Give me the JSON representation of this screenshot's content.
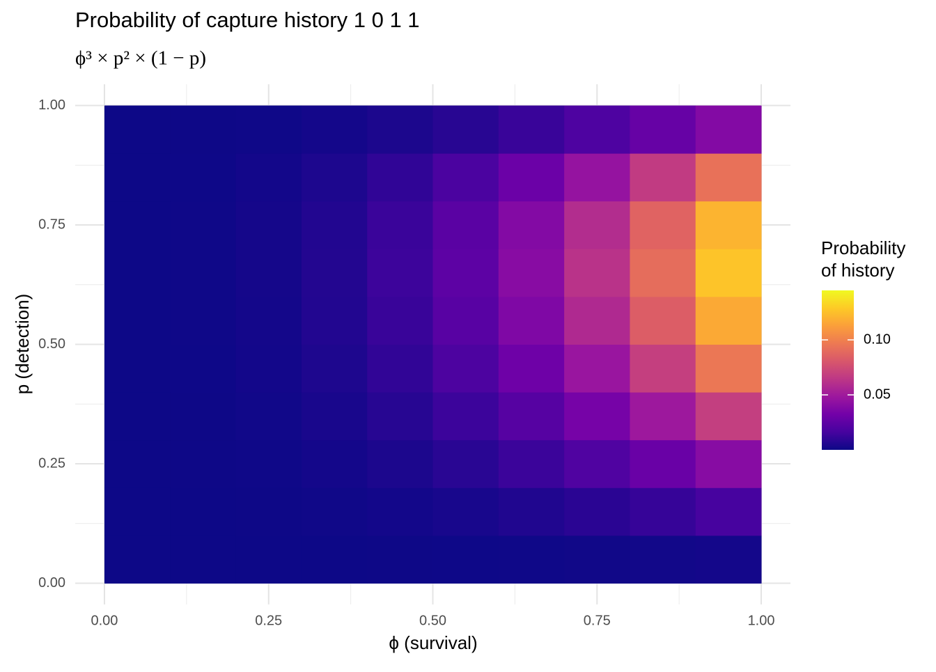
{
  "chart_data": {
    "type": "heatmap",
    "title": "Probability of capture history 1 0 1 1",
    "subtitle": "ϕ³ × p² × (1 − p)",
    "x_label": "ϕ (survival)",
    "y_label": "p (detection)",
    "legend_title": [
      "Probability",
      "of history"
    ],
    "x": [
      0.05,
      0.15,
      0.25,
      0.35,
      0.45,
      0.55,
      0.65,
      0.75,
      0.85,
      0.95
    ],
    "y": [
      0.05,
      0.15,
      0.25,
      0.35,
      0.45,
      0.55,
      0.65,
      0.75,
      0.85,
      0.95
    ],
    "values": [
      [
        0,
        0,
        0,
        0.0001,
        0.0002,
        0.0004,
        0.0007,
        0.001,
        0.0015,
        0.002
      ],
      [
        0,
        0.0001,
        0.0003,
        0.0008,
        0.0017,
        0.0032,
        0.0053,
        0.0081,
        0.0117,
        0.0164
      ],
      [
        0,
        0.0002,
        0.0007,
        0.002,
        0.0043,
        0.0078,
        0.0129,
        0.0198,
        0.0288,
        0.0402
      ],
      [
        0,
        0.0003,
        0.0012,
        0.0034,
        0.0073,
        0.0132,
        0.0219,
        0.0336,
        0.0489,
        0.0683
      ],
      [
        0,
        0.0004,
        0.0017,
        0.0048,
        0.0101,
        0.0185,
        0.0306,
        0.047,
        0.0684,
        0.0955
      ],
      [
        0,
        0.0005,
        0.0021,
        0.0058,
        0.0124,
        0.0226,
        0.0374,
        0.0574,
        0.0836,
        0.1167
      ],
      [
        0,
        0.0005,
        0.0023,
        0.0063,
        0.0135,
        0.0246,
        0.0406,
        0.0624,
        0.0908,
        0.1268
      ],
      [
        0,
        0.0005,
        0.0022,
        0.006,
        0.0128,
        0.0234,
        0.0386,
        0.0593,
        0.0864,
        0.1206
      ],
      [
        0,
        0.0004,
        0.0017,
        0.0046,
        0.0099,
        0.018,
        0.0298,
        0.0457,
        0.0666,
        0.0929
      ],
      [
        0,
        0.0002,
        0.0007,
        0.0019,
        0.0041,
        0.0075,
        0.0124,
        0.019,
        0.0277,
        0.0387
      ]
    ],
    "xlim": [
      -0.0445,
      1.0445
    ],
    "ylim": [
      -0.0445,
      1.0445
    ],
    "xticks": [
      {
        "value": 0,
        "label": "0.00"
      },
      {
        "value": 0.25,
        "label": "0.25"
      },
      {
        "value": 0.5,
        "label": "0.50"
      },
      {
        "value": 0.75,
        "label": "0.75"
      },
      {
        "value": 1,
        "label": "1.00"
      }
    ],
    "yticks": [
      {
        "value": 0,
        "label": "0.00"
      },
      {
        "value": 0.25,
        "label": "0.25"
      },
      {
        "value": 0.5,
        "label": "0.50"
      },
      {
        "value": 0.75,
        "label": "0.75"
      },
      {
        "value": 1,
        "label": "1.00"
      }
    ],
    "x_minor_ticks": [
      0.125,
      0.375,
      0.625,
      0.875
    ],
    "y_minor_ticks": [
      0.125,
      0.375,
      0.625,
      0.875
    ],
    "colorscale": "plasma",
    "color_lim": [
      0,
      0.145
    ],
    "color_ticks": [
      0.05,
      {
        "value": 0.1,
        "label": "0.10"
      }
    ],
    "grid": true
  }
}
